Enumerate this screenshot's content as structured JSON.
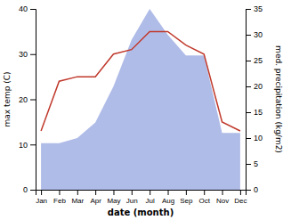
{
  "chart_data": {
    "type": "line",
    "categories": [
      "Jan",
      "Feb",
      "Mar",
      "Apr",
      "May",
      "Jun",
      "Jul",
      "Aug",
      "Sep",
      "Oct",
      "Nov",
      "Dec"
    ],
    "x_label": "date (month)",
    "y_label": "max temp (C)",
    "y2_label": "med. precipitation (kg/m2)",
    "ylim": [
      0,
      40
    ],
    "yticks": [
      0,
      10,
      20,
      30,
      40
    ],
    "y2lim": [
      0,
      35
    ],
    "y2ticks": [
      0,
      5,
      10,
      15,
      20,
      25,
      30,
      35
    ],
    "grid": false,
    "series": [
      {
        "type": "area",
        "axis": "y2",
        "color": "#b0bce8",
        "values": [
          9,
          9,
          10,
          13,
          20,
          29,
          35,
          30,
          26,
          26,
          11,
          11
        ]
      },
      {
        "type": "line",
        "color": "#c0392b",
        "values": [
          13,
          24,
          25,
          25,
          30,
          31,
          35,
          35,
          32,
          30,
          15,
          13
        ]
      }
    ]
  }
}
